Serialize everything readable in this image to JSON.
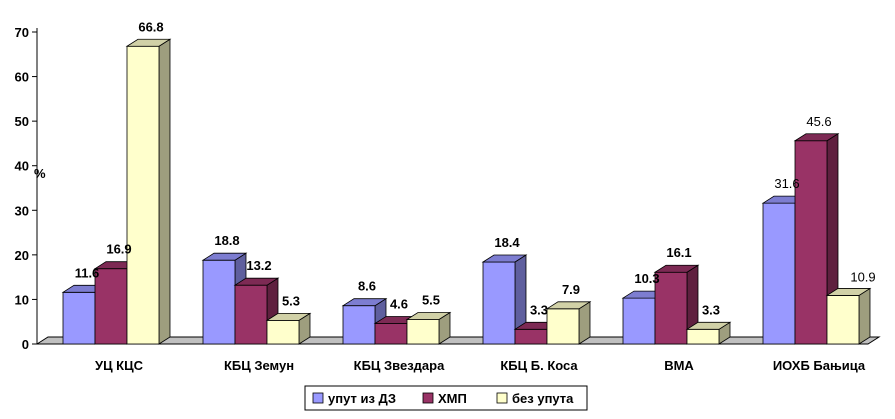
{
  "chart_data": {
    "type": "bar",
    "ylabel": "%",
    "ylim": [
      0,
      70
    ],
    "yticks": [
      0,
      10,
      20,
      30,
      40,
      50,
      60,
      70
    ],
    "categories": [
      "УЦ КЦС",
      "КБЦ Земун",
      "КБЦ Звездара",
      "КБЦ Б. Коса",
      "ВМА",
      "ИОХБ Бањица"
    ],
    "series": [
      {
        "name": "упут из ДЗ",
        "color": "#9999ff",
        "values": [
          11.6,
          18.8,
          8.6,
          18.4,
          10.3,
          31.6
        ]
      },
      {
        "name": "ХМП",
        "color": "#993366",
        "values": [
          16.9,
          13.2,
          4.6,
          3.3,
          16.1,
          45.6
        ]
      },
      {
        "name": "без упута",
        "color": "#ffffcc",
        "values": [
          66.8,
          5.3,
          5.5,
          7.9,
          3.3,
          10.9
        ]
      }
    ],
    "data_labels": [
      [
        "11.6",
        "18.8",
        "8.6",
        "18.4",
        "10.3",
        "31.6"
      ],
      [
        "16.9",
        "13.2",
        "4.6",
        "3.3",
        "16.1",
        "45.6"
      ],
      [
        "66.8",
        "5.3",
        "5.5",
        "7.9",
        "3.3",
        "10.9"
      ]
    ],
    "legend_position": "bottom",
    "grid": false,
    "three_d": true
  }
}
